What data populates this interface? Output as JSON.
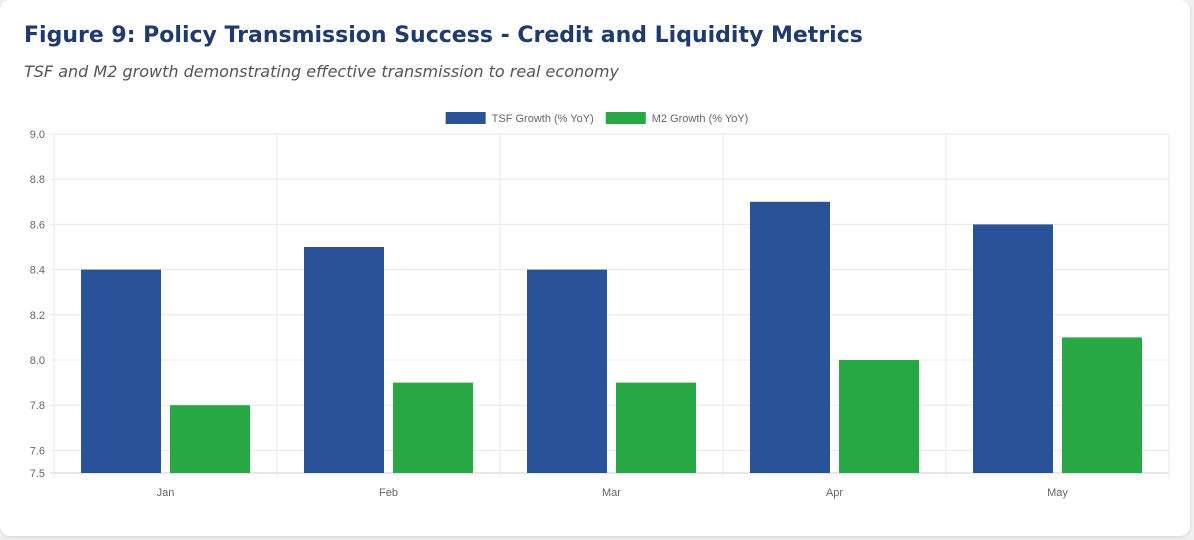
{
  "figure": {
    "title": "Figure 9: Policy Transmission Success - Credit and Liquidity Metrics",
    "subtitle": "TSF and M2 growth demonstrating effective transmission to real economy"
  },
  "chart_data": {
    "type": "bar",
    "categories": [
      "Jan",
      "Feb",
      "Mar",
      "Apr",
      "May"
    ],
    "series": [
      {
        "name": "TSF Growth (% YoY)",
        "values": [
          8.4,
          8.5,
          8.4,
          8.7,
          8.6
        ],
        "color": "#2a5298"
      },
      {
        "name": "M2 Growth (% YoY)",
        "values": [
          7.8,
          7.9,
          7.9,
          8.0,
          8.1
        ],
        "color": "#28a745"
      }
    ],
    "ylim": [
      7.5,
      9.0
    ],
    "yticks": [
      7.5,
      7.6,
      7.8,
      8.0,
      8.2,
      8.4,
      8.6,
      8.8,
      9.0
    ],
    "ytick_labels": [
      "7.5",
      "7.6",
      "7.8",
      "8.0",
      "8.2",
      "8.4",
      "8.6",
      "8.8",
      "9.0"
    ],
    "grid": true,
    "legend": "top-center"
  }
}
